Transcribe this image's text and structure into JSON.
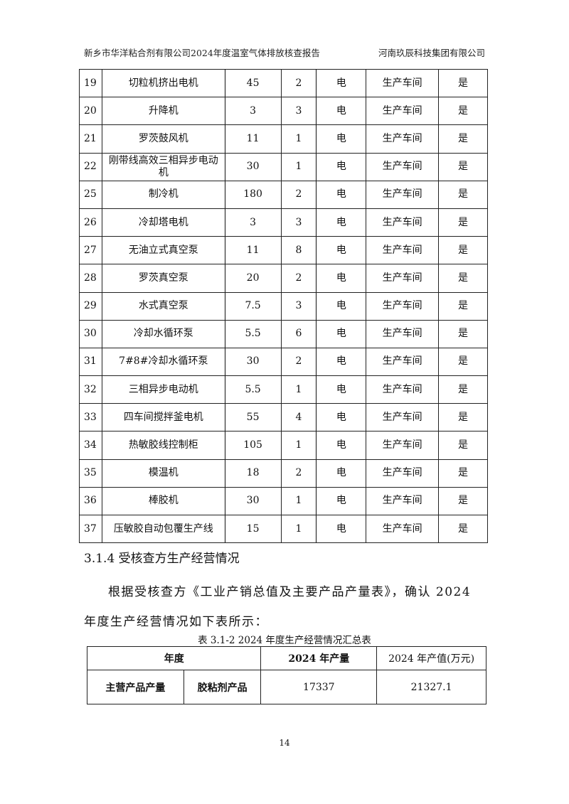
{
  "header": {
    "left": "新乡市华洋粘合剂有限公司2024年度温室气体排放核查报告",
    "right": "河南玖辰科技集团有限公司"
  },
  "equipment_rows": [
    [
      "19",
      "切粒机挤出电机",
      "45",
      "2",
      "电",
      "生产车间",
      "是"
    ],
    [
      "20",
      "升降机",
      "3",
      "3",
      "电",
      "生产车间",
      "是"
    ],
    [
      "21",
      "罗茨鼓风机",
      "11",
      "1",
      "电",
      "生产车间",
      "是"
    ],
    [
      "22",
      "刚带线高效三相异步电动机",
      "30",
      "1",
      "电",
      "生产车间",
      "是"
    ],
    [
      "25",
      "制冷机",
      "180",
      "2",
      "电",
      "生产车间",
      "是"
    ],
    [
      "26",
      "冷却塔电机",
      "3",
      "3",
      "电",
      "生产车间",
      "是"
    ],
    [
      "27",
      "无油立式真空泵",
      "11",
      "8",
      "电",
      "生产车间",
      "是"
    ],
    [
      "28",
      "罗茨真空泵",
      "20",
      "2",
      "电",
      "生产车间",
      "是"
    ],
    [
      "29",
      "水式真空泵",
      "7.5",
      "3",
      "电",
      "生产车间",
      "是"
    ],
    [
      "30",
      "冷却水循环泵",
      "5.5",
      "6",
      "电",
      "生产车间",
      "是"
    ],
    [
      "31",
      "7#8#冷却水循环泵",
      "30",
      "2",
      "电",
      "生产车间",
      "是"
    ],
    [
      "32",
      "三相异步电动机",
      "5.5",
      "1",
      "电",
      "生产车间",
      "是"
    ],
    [
      "33",
      "四车间搅拌釜电机",
      "55",
      "4",
      "电",
      "生产车间",
      "是"
    ],
    [
      "34",
      "热敏胶线控制柜",
      "105",
      "1",
      "电",
      "生产车间",
      "是"
    ],
    [
      "35",
      "模温机",
      "18",
      "2",
      "电",
      "生产车间",
      "是"
    ],
    [
      "36",
      "棒胶机",
      "30",
      "1",
      "电",
      "生产车间",
      "是"
    ],
    [
      "37",
      "压敏胶自动包覆生产线",
      "15",
      "1",
      "电",
      "生产车间",
      "是"
    ]
  ],
  "section_heading": "3.1.4 受核查方生产经营情况",
  "paragraph_line1": "根据受核查方《工业产销总值及主要产品产量表》，确认 2024",
  "paragraph_line2": "年度生产经营情况如下表所示：",
  "table2": {
    "caption": "表 3.1-2 2024 年度生产经营情况汇总表",
    "headers": [
      "年度",
      "2024 年产量",
      "2024 年产值(万元)"
    ],
    "row": [
      "主营产品产量",
      "胶粘剂产品",
      "17337",
      "21327.1"
    ]
  },
  "page_number": "14"
}
